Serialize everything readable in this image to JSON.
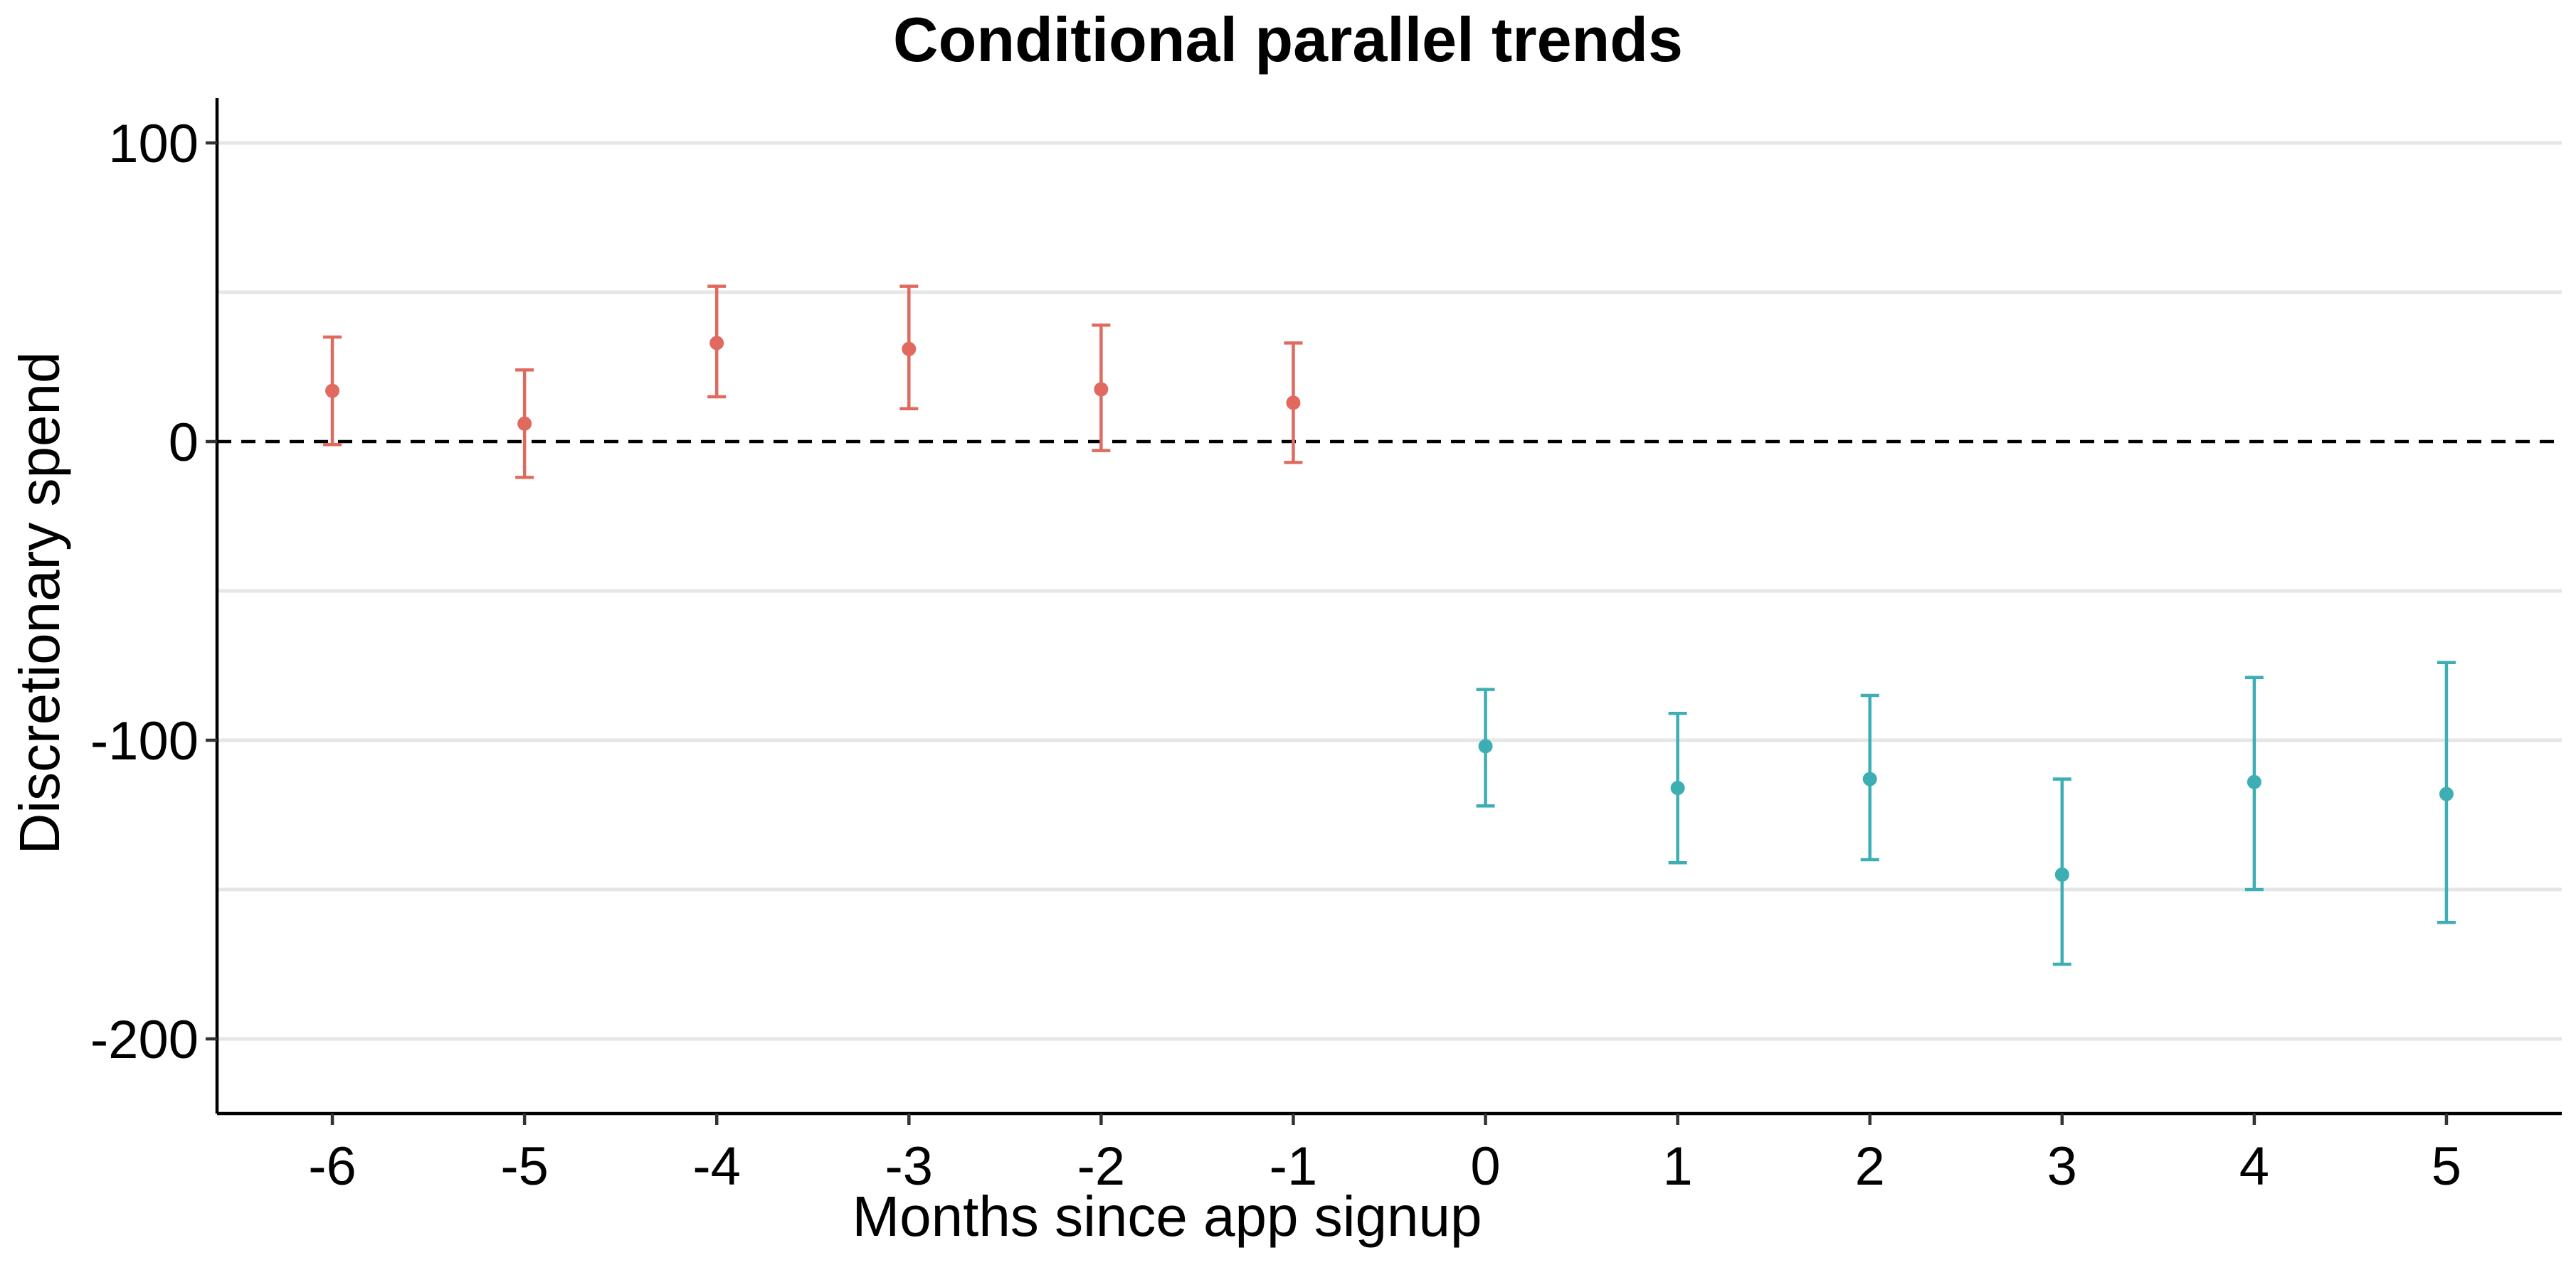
{
  "chart_data": {
    "type": "scatter",
    "title": "Conditional parallel trends",
    "xlabel": "Months since app signup",
    "ylabel": "Discretionary spend",
    "x_ticks": [
      -6,
      -5,
      -4,
      -3,
      -2,
      -1,
      0,
      1,
      2,
      3,
      4,
      5
    ],
    "x_tick_labels": [
      "-6",
      "-5",
      "-4",
      "-3",
      "-2",
      "-1",
      "0",
      "1",
      "2",
      "3",
      "4",
      "5"
    ],
    "y_ticks": [
      100,
      0,
      -100,
      -200
    ],
    "y_tick_labels": [
      "100",
      "0",
      "-100",
      "-200"
    ],
    "y_minor_gridlines": [
      50,
      -50,
      -150
    ],
    "xlim": [
      -6.6,
      5.6
    ],
    "ylim": [
      -225,
      115
    ],
    "grid": "horizontal",
    "reference_line": {
      "y": 0,
      "style": "dashed",
      "color": "#000000"
    },
    "series": [
      {
        "color": "#E06A60",
        "points": [
          {
            "x": -6,
            "y": 17,
            "lower": -1,
            "upper": 35
          },
          {
            "x": -5,
            "y": 6,
            "lower": -12,
            "upper": 24
          },
          {
            "x": -4,
            "y": 33,
            "lower": 15,
            "upper": 52
          },
          {
            "x": -3,
            "y": 31,
            "lower": 11,
            "upper": 52
          },
          {
            "x": -2,
            "y": 17.5,
            "lower": -3,
            "upper": 39
          },
          {
            "x": -1,
            "y": 13,
            "lower": -7,
            "upper": 33
          }
        ]
      },
      {
        "color": "#3DAFB4",
        "points": [
          {
            "x": 0,
            "y": -102,
            "lower": -122,
            "upper": -83
          },
          {
            "x": 1,
            "y": -116,
            "lower": -141,
            "upper": -91
          },
          {
            "x": 2,
            "y": -113,
            "lower": -140,
            "upper": -85
          },
          {
            "x": 3,
            "y": -145,
            "lower": -175,
            "upper": -113
          },
          {
            "x": 4,
            "y": -114,
            "lower": -150,
            "upper": -79
          },
          {
            "x": 5,
            "y": -118,
            "lower": -161,
            "upper": -74
          }
        ]
      }
    ]
  }
}
